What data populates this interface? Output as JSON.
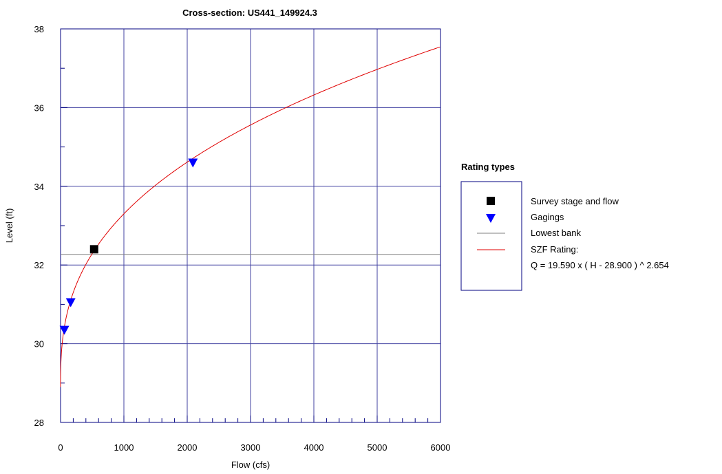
{
  "chart_data": {
    "type": "line",
    "title": "Cross-section: US441_149924.3",
    "xlabel": "Flow (cfs)",
    "ylabel": "Level (ft)",
    "xlim": [
      0,
      6000
    ],
    "ylim": [
      28,
      38
    ],
    "x_ticks": [
      "0",
      "1000",
      "2000",
      "3000",
      "4000",
      "5000",
      "6000"
    ],
    "y_ticks": [
      "28",
      "30",
      "32",
      "34",
      "36",
      "38"
    ],
    "grid": true,
    "legend_position": "right",
    "legend_title": "Rating types",
    "rating": {
      "name": "SZF Rating:",
      "equation": "Q = 19.590 x ( H - 28.900 ) ^ 2.654",
      "coefficient": 19.59,
      "offset": 28.9,
      "exponent": 2.654,
      "h_max": 37.55
    },
    "lowest_bank": {
      "name": "Lowest bank",
      "level": 32.27
    },
    "survey": {
      "name": "Survey stage and flow",
      "points": [
        {
          "x": 530,
          "y": 32.4
        }
      ]
    },
    "gagings": {
      "name": "Gagings",
      "points": [
        {
          "x": 60,
          "y": 30.35
        },
        {
          "x": 160,
          "y": 31.05
        },
        {
          "x": 2090,
          "y": 34.6
        }
      ]
    },
    "colors": {
      "grid": "#4040a0",
      "rating": "#e00000",
      "gaging": "#0000ff",
      "survey": "#000000",
      "bank": "#808080",
      "frame": "#000080"
    }
  }
}
